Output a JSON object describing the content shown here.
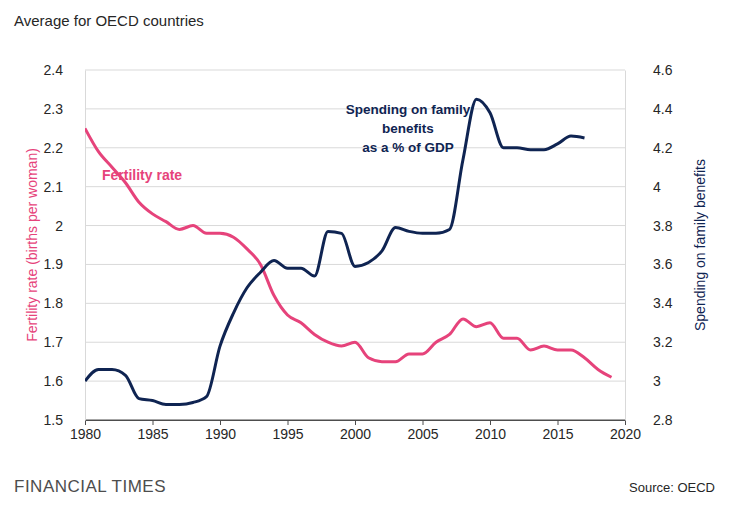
{
  "chart_data": {
    "type": "line",
    "title": "Average for OECD countries",
    "y_label": "Fertility rate (births per woman)",
    "y2_label": "Spending on family benefits",
    "source": "Source: OECD",
    "publisher": "FINANCIAL TIMES",
    "x": [
      1980,
      1981,
      1982,
      1983,
      1984,
      1985,
      1986,
      1987,
      1988,
      1989,
      1990,
      1991,
      1992,
      1993,
      1994,
      1995,
      1996,
      1997,
      1998,
      1999,
      2000,
      2001,
      2002,
      2003,
      2004,
      2005,
      2006,
      2007,
      2008,
      2009,
      2010,
      2011,
      2012,
      2013,
      2014,
      2015,
      2016,
      2017,
      2018,
      2019
    ],
    "series": [
      {
        "name": "Fertility rate",
        "color": "#e6437b",
        "values": [
          2.25,
          2.19,
          2.15,
          2.11,
          2.06,
          2.03,
          2.01,
          1.99,
          2.0,
          1.98,
          1.98,
          1.97,
          1.94,
          1.9,
          1.82,
          1.77,
          1.75,
          1.72,
          1.7,
          1.69,
          1.7,
          1.66,
          1.65,
          1.65,
          1.67,
          1.67,
          1.7,
          1.72,
          1.76,
          1.74,
          1.75,
          1.71,
          1.71,
          1.68,
          1.69,
          1.68,
          1.68,
          1.66,
          1.63,
          1.61
        ]
      },
      {
        "name": "Spending on family benefits as a % of GDP",
        "color": "#0f2452",
        "axis": "y2",
        "values": [
          3.0,
          3.06,
          3.06,
          3.03,
          2.91,
          2.9,
          2.88,
          2.88,
          2.89,
          2.92,
          3.18,
          3.35,
          3.48,
          3.56,
          3.62,
          3.58,
          3.58,
          3.54,
          3.77,
          3.76,
          3.59,
          3.61,
          3.67,
          3.79,
          3.77,
          3.76,
          3.76,
          3.78,
          4.14,
          4.45,
          4.38,
          4.2,
          4.2,
          4.19,
          4.19,
          4.22,
          4.26,
          4.25,
          null,
          null
        ]
      }
    ],
    "xlim": [
      1980,
      2020
    ],
    "xticks": [
      1980,
      1985,
      1990,
      1995,
      2000,
      2005,
      2010,
      2015,
      2020
    ],
    "ylim": [
      1.5,
      2.4
    ],
    "yticks": [
      1.5,
      1.6,
      1.7,
      1.8,
      1.9,
      2,
      2.1,
      2.2,
      2.3,
      2.4
    ],
    "y2lim": [
      2.8,
      4.6
    ],
    "y2ticks": [
      2.8,
      3,
      3.2,
      3.4,
      3.6,
      3.8,
      4,
      4.2,
      4.4,
      4.6
    ],
    "grid": true
  }
}
